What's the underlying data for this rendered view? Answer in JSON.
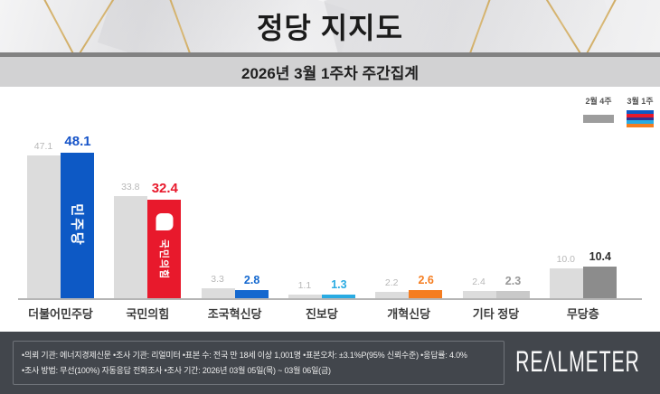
{
  "header": {
    "title": "정당 지지도",
    "subtitle": "2026년 3월 1주차 주간집계"
  },
  "legend": {
    "previous": {
      "label": "2월 4주",
      "color": "#9d9d9d"
    },
    "current": {
      "label": "3월 1주",
      "stripe_colors": [
        "#0d59c5",
        "#e8192c",
        "#2e3192",
        "#29abe2",
        "#f57d20"
      ]
    }
  },
  "chart_data": {
    "type": "bar",
    "title": "정당 지지도",
    "subtitle": "2026년 3월 1주차 주간집계",
    "categories": [
      "더불어민주당",
      "국민의힘",
      "조국혁신당",
      "진보당",
      "개혁신당",
      "기타 정당",
      "무당층"
    ],
    "series": [
      {
        "name": "2월 4주",
        "values": [
          47.1,
          33.8,
          3.3,
          1.1,
          2.2,
          2.4,
          10.0
        ]
      },
      {
        "name": "3월 1주",
        "values": [
          48.1,
          32.4,
          2.8,
          1.3,
          2.6,
          2.3,
          10.4
        ]
      }
    ],
    "ylim": [
      0,
      50
    ],
    "grid": false,
    "legend_position": "top-right"
  },
  "bar_style": {
    "previous_color": "#dcdcdc",
    "current_colors": [
      "#0d59c5",
      "#e8192c",
      "#1468cf",
      "#29abe2",
      "#f57d20",
      "#c9c9c9",
      "#8c8c8c"
    ],
    "current_label_colors": [
      "#1553c8",
      "#e8192c",
      "#1468cf",
      "#29abe2",
      "#f57d20",
      "#989898",
      "#2e2e2e"
    ],
    "emphasis": [
      true,
      true,
      false,
      false,
      false,
      false,
      false
    ],
    "overlays": [
      {
        "type": "rotated-text",
        "text": "민주당"
      },
      {
        "type": "logo-and-text",
        "text": "국민의힘"
      },
      null,
      null,
      null,
      null,
      null
    ]
  },
  "footer": {
    "line1": "•의뢰 기관: 에너지경제신문  •조사 기관: 리얼미터 •표본 수: 전국 만 18세 이상 1,001명 •표본오차: ±3.1%P(95% 신뢰수준) •응답률: 4.0%",
    "line2": "•조사 방법: 무선(100%) 자동응답 전화조사 •조사 기간: 2026년 03월 05일(목) ~ 03월 06일(금)",
    "logo": "REALMETER"
  }
}
